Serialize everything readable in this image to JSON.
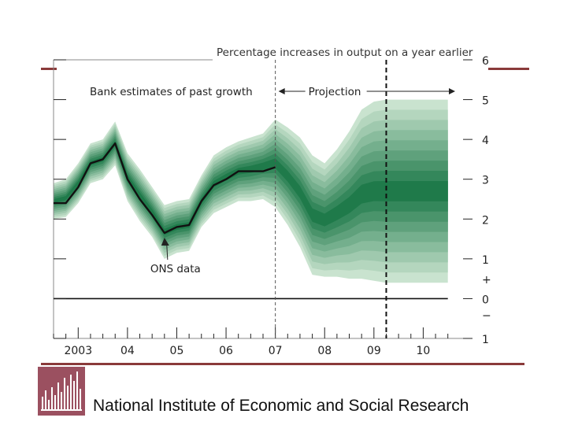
{
  "footer": {
    "institution": "National Institute of Economic and Social Research"
  },
  "colors": {
    "rule": "#8a3a3a",
    "logo_bg": "#9b5060",
    "fan_outer": "#c9e3cf",
    "fan_inner": "#1f7a4a",
    "line": "#111111"
  },
  "chart_data": {
    "type": "fan",
    "title": "Percentage increases in output on a year earlier",
    "annotations": {
      "past": "Bank estimates of past growth",
      "projection": "Projection",
      "ons": "ONS data"
    },
    "x_tick_labels": [
      "2003",
      "04",
      "05",
      "06",
      "07",
      "08",
      "09",
      "10"
    ],
    "x_tick_years": [
      2003.5,
      2004.5,
      2005.5,
      2006.5,
      2007.5,
      2008.5,
      2009.5,
      2010.5
    ],
    "y_tick_labels": [
      "6",
      "5",
      "4",
      "3",
      "2",
      "1",
      "+",
      "0",
      "−",
      "1"
    ],
    "y_tick_values": [
      6,
      5,
      4,
      3,
      2,
      1,
      0.5,
      0,
      -0.4,
      -1
    ],
    "xlim": [
      2003.0,
      2011.5
    ],
    "ylim": [
      -1,
      6
    ],
    "projection_start": 2007.5,
    "two_year_marker": 2009.75,
    "ons_data": {
      "x": [
        2003.0,
        2003.25,
        2003.5,
        2003.75,
        2004.0,
        2004.25,
        2004.5,
        2004.75,
        2005.0,
        2005.25,
        2005.5,
        2005.75,
        2006.0,
        2006.25,
        2006.5,
        2006.75,
        2007.0,
        2007.25,
        2007.5
      ],
      "y": [
        2.4,
        2.4,
        2.8,
        3.4,
        3.5,
        3.9,
        3.0,
        2.5,
        2.1,
        1.65,
        1.8,
        1.85,
        2.45,
        2.85,
        3.0,
        3.2,
        3.2,
        3.2,
        3.3
      ]
    },
    "fan_outer": {
      "x": [
        2003.0,
        2003.25,
        2003.5,
        2003.75,
        2004.0,
        2004.25,
        2004.5,
        2004.75,
        2005.0,
        2005.25,
        2005.5,
        2005.75,
        2006.0,
        2006.25,
        2006.5,
        2006.75,
        2007.0,
        2007.25,
        2007.5,
        2007.75,
        2008.0,
        2008.25,
        2008.5,
        2008.75,
        2009.0,
        2009.25,
        2009.5,
        2009.75,
        2010.0,
        2010.25,
        2010.5,
        2010.75,
        2011.0
      ],
      "upper": [
        2.9,
        3.0,
        3.4,
        3.9,
        4.0,
        4.45,
        3.65,
        3.25,
        2.8,
        2.35,
        2.45,
        2.5,
        3.1,
        3.6,
        3.8,
        3.95,
        4.05,
        4.15,
        4.5,
        4.3,
        4.05,
        3.6,
        3.4,
        3.75,
        4.2,
        4.75,
        4.95,
        5.0,
        5.0,
        5.0,
        5.0,
        5.0,
        5.0
      ],
      "lower": [
        2.0,
        2.05,
        2.4,
        2.9,
        3.0,
        3.35,
        2.45,
        1.95,
        1.55,
        1.0,
        1.15,
        1.2,
        1.8,
        2.15,
        2.3,
        2.45,
        2.45,
        2.5,
        2.3,
        1.85,
        1.3,
        0.6,
        0.55,
        0.55,
        0.5,
        0.5,
        0.45,
        0.4,
        0.4,
        0.4,
        0.4,
        0.4,
        0.4
      ]
    }
  }
}
